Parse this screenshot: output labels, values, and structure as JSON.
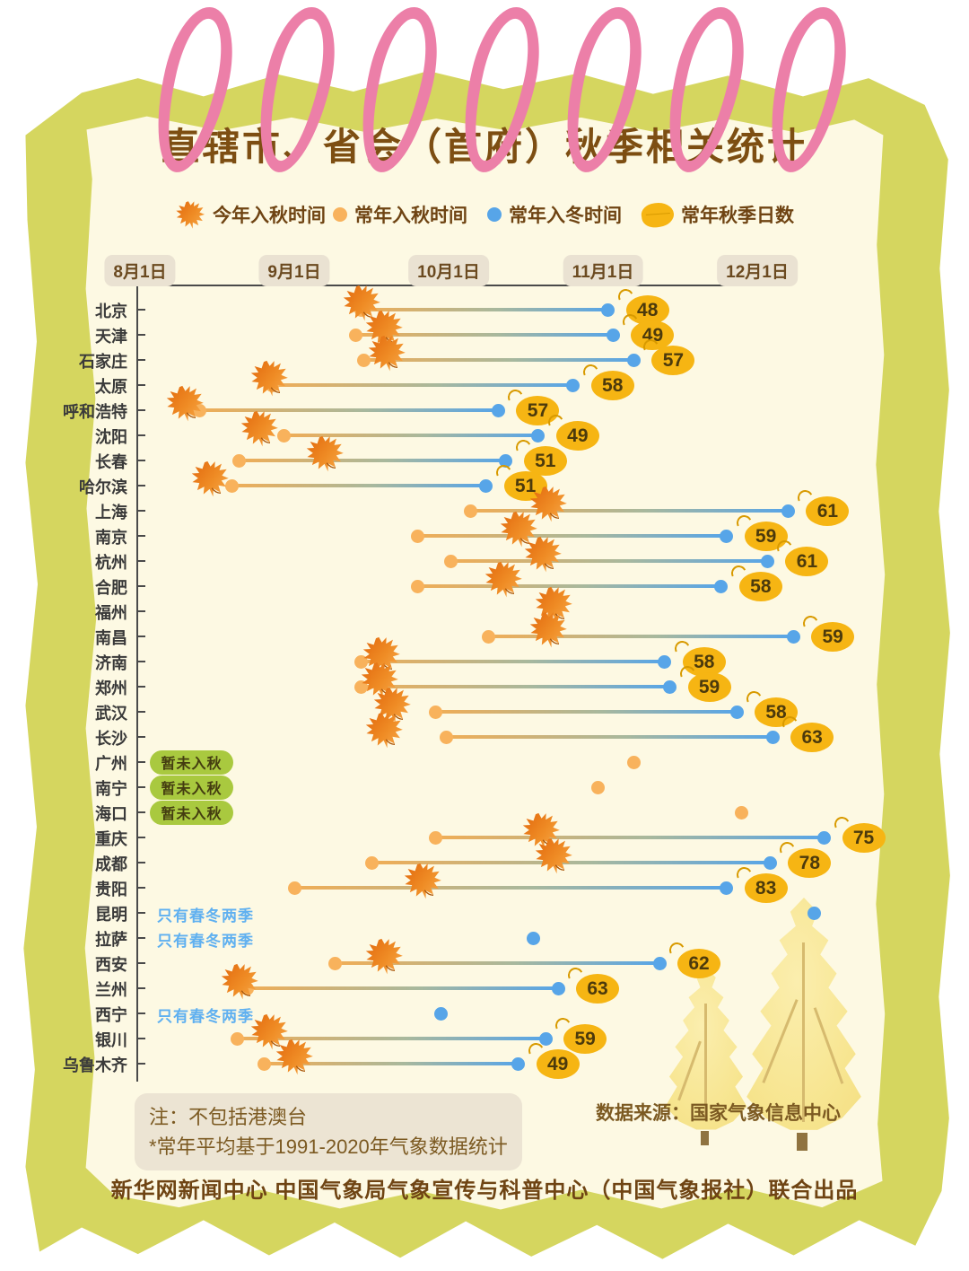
{
  "page": {
    "title": "直辖市、省会（首府）秋季相关统计",
    "note1": "注：不包括港澳台",
    "note2": "*常年平均基于1991-2020年气象数据统计",
    "source": "数据来源：国家气象信息中心",
    "footer": "新华网新闻中心 中国气象局气象宣传与科普中心（中国气象报社）联合出品"
  },
  "legend": {
    "items": [
      {
        "icon": "maple-leaf-icon",
        "label": "今年入秋时间"
      },
      {
        "icon": "orange-dot-icon",
        "label": "常年入秋时间"
      },
      {
        "icon": "blue-dot-icon",
        "label": "常年入冬时间"
      },
      {
        "icon": "yellow-leaf-icon",
        "label": "常年秋季日数"
      }
    ]
  },
  "colors": {
    "frame_olive": "#d5d65f",
    "card_cream": "#fdf9e3",
    "ring_pink": "#ec7fa8",
    "title_brown": "#7d4e12",
    "normal_autumn_orange": "#f8b25c",
    "normal_winter_blue": "#57a5e8",
    "days_badge_yellow": "#f6b513",
    "status_green": "#a9c93f",
    "two_seasons_blue": "#5fb0f0"
  },
  "chart_data": {
    "type": "dumbbell-timeline",
    "title": "直辖市、省会（首府）秋季相关统计",
    "x_axis": {
      "tick_labels": [
        "8月1日",
        "9月1日",
        "10月1日",
        "11月1日",
        "12月1日"
      ],
      "tick_days": [
        0,
        31,
        61,
        92,
        122
      ],
      "unit": "days since Aug 1"
    },
    "series_meaning": {
      "leaf": "今年入秋时间",
      "autumn": "常年入秋时间",
      "winter": "常年入冬时间",
      "days": "常年秋季日数"
    },
    "status_labels": {
      "not_yet": "暂未入秋",
      "two_seasons": "只有春冬两季"
    },
    "rows": [
      {
        "city": "北京",
        "leaf": 44,
        "autumn": 44,
        "winter": 93,
        "days": 48
      },
      {
        "city": "天津",
        "leaf": 48.5,
        "autumn": 43,
        "winter": 94,
        "days": 49
      },
      {
        "city": "石家庄",
        "leaf": 49,
        "autumn": 44.5,
        "winter": 98,
        "days": 57
      },
      {
        "city": "太原",
        "leaf": 26,
        "autumn": 26.5,
        "winter": 86,
        "days": 58
      },
      {
        "city": "呼和浩特",
        "leaf": 9,
        "autumn": 12,
        "winter": 71,
        "days": 57
      },
      {
        "city": "沈阳",
        "leaf": 24,
        "autumn": 29,
        "winter": 79,
        "days": 49
      },
      {
        "city": "长春",
        "leaf": 37,
        "autumn": 20,
        "winter": 72.5,
        "days": 51
      },
      {
        "city": "哈尔滨",
        "leaf": 14,
        "autumn": 18.5,
        "winter": 68.5,
        "days": 51
      },
      {
        "city": "上海",
        "leaf": 81,
        "autumn": 65.5,
        "winter": 128,
        "days": 61
      },
      {
        "city": "南京",
        "leaf": 75,
        "autumn": 55,
        "winter": 116,
        "days": 59
      },
      {
        "city": "杭州",
        "leaf": 80,
        "autumn": 61.5,
        "winter": 124,
        "days": 61
      },
      {
        "city": "合肥",
        "leaf": 72,
        "autumn": 55,
        "winter": 115,
        "days": 58
      },
      {
        "city": "福州",
        "leaf": 82
      },
      {
        "city": "南昌",
        "leaf": 81,
        "autumn": 69,
        "winter": 129,
        "days": 59
      },
      {
        "city": "济南",
        "leaf": 48,
        "autumn": 44,
        "winter": 104,
        "days": 58
      },
      {
        "city": "郑州",
        "leaf": 47.5,
        "autumn": 44,
        "winter": 105,
        "days": 59
      },
      {
        "city": "武汉",
        "leaf": 50,
        "autumn": 58.5,
        "winter": 118,
        "days": 58
      },
      {
        "city": "长沙",
        "leaf": 48.5,
        "autumn": 60.5,
        "winter": 125,
        "days": 63
      },
      {
        "city": "广州",
        "status": "not_yet",
        "autumn": 98
      },
      {
        "city": "南宁",
        "status": "not_yet",
        "autumn": 91
      },
      {
        "city": "海口",
        "status": "not_yet",
        "autumn": 119
      },
      {
        "city": "重庆",
        "leaf": 79.5,
        "autumn": 58.5,
        "winter": 135,
        "days": 75
      },
      {
        "city": "成都",
        "leaf": 82,
        "autumn": 46,
        "winter": 124.5,
        "days": 78
      },
      {
        "city": "贵阳",
        "leaf": 56,
        "autumn": 31,
        "winter": 116,
        "days": 83
      },
      {
        "city": "昆明",
        "status": "two_seasons",
        "winter": 133
      },
      {
        "city": "拉萨",
        "status": "two_seasons",
        "winter": 78
      },
      {
        "city": "西安",
        "leaf": 48.5,
        "autumn": 39,
        "winter": 103,
        "days": 62
      },
      {
        "city": "兰州",
        "leaf": 20,
        "autumn": 21.5,
        "winter": 83,
        "days": 63
      },
      {
        "city": "西宁",
        "status": "two_seasons",
        "winter": 59.5
      },
      {
        "city": "银川",
        "leaf": 26,
        "autumn": 19.5,
        "winter": 80.5,
        "days": 59
      },
      {
        "city": "乌鲁木齐",
        "leaf": 31,
        "autumn": 25,
        "winter": 75,
        "days": 49
      }
    ]
  }
}
